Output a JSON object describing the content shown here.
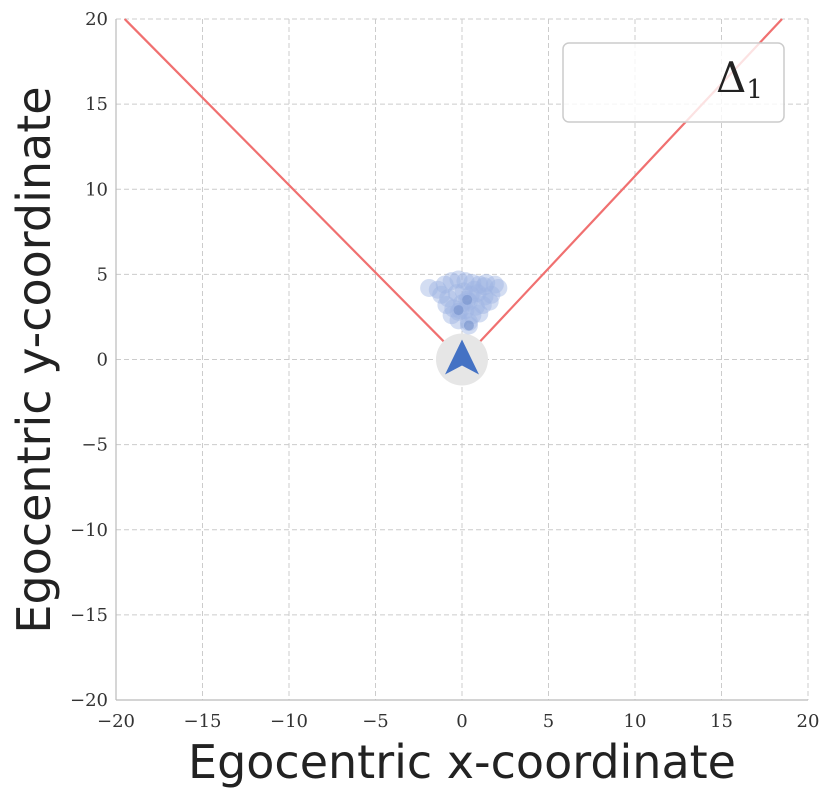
{
  "chart_data": {
    "type": "scatter",
    "xlabel": "Egocentric x-coordinate",
    "ylabel": "Egocentric y-coordinate",
    "xlim": [
      -20,
      20
    ],
    "ylim": [
      -20,
      20
    ],
    "xticks": [
      -20,
      -15,
      -10,
      -5,
      0,
      5,
      10,
      15,
      20
    ],
    "yticks": [
      -20,
      -15,
      -10,
      -5,
      0,
      5,
      10,
      15,
      20
    ],
    "grid": true,
    "legend": {
      "placement": "top-right",
      "label_main": "Δ",
      "label_sub": "1"
    },
    "agent": {
      "x": 0,
      "y": 0,
      "heading": "up",
      "color": "#4472c4",
      "halo_color": "#e6e6e6"
    },
    "boundary_lines": {
      "color": "#f07070",
      "lines": [
        {
          "x1": -19.5,
          "y1": 20,
          "x2": -0.9,
          "y2": 0.9
        },
        {
          "x1": 0.9,
          "y1": 0.9,
          "x2": 18.5,
          "y2": 20
        }
      ]
    },
    "points_color": "#9db3e3",
    "points": [
      {
        "x": -1.9,
        "y": 4.2
      },
      {
        "x": -1.4,
        "y": 4.1
      },
      {
        "x": -1.0,
        "y": 4.4
      },
      {
        "x": -0.6,
        "y": 4.6
      },
      {
        "x": -0.2,
        "y": 4.7
      },
      {
        "x": 0.2,
        "y": 4.6
      },
      {
        "x": 0.6,
        "y": 4.5
      },
      {
        "x": 1.0,
        "y": 4.4
      },
      {
        "x": 1.4,
        "y": 4.5
      },
      {
        "x": 1.9,
        "y": 4.4
      },
      {
        "x": 2.1,
        "y": 4.2
      },
      {
        "x": -1.2,
        "y": 3.8
      },
      {
        "x": -0.8,
        "y": 3.6
      },
      {
        "x": -0.3,
        "y": 3.9
      },
      {
        "x": 0.1,
        "y": 4.0
      },
      {
        "x": 0.5,
        "y": 3.8
      },
      {
        "x": 0.9,
        "y": 3.9
      },
      {
        "x": 1.3,
        "y": 3.7
      },
      {
        "x": 1.7,
        "y": 3.8
      },
      {
        "x": -0.9,
        "y": 3.2
      },
      {
        "x": -0.5,
        "y": 3.0
      },
      {
        "x": 0.0,
        "y": 3.3
      },
      {
        "x": 0.4,
        "y": 3.4
      },
      {
        "x": 0.8,
        "y": 3.1
      },
      {
        "x": 1.2,
        "y": 3.2
      },
      {
        "x": 1.6,
        "y": 3.4
      },
      {
        "x": -0.6,
        "y": 2.6
      },
      {
        "x": -0.2,
        "y": 2.8
      },
      {
        "x": 0.2,
        "y": 2.9
      },
      {
        "x": 0.6,
        "y": 2.6
      },
      {
        "x": 1.0,
        "y": 2.7
      },
      {
        "x": -0.2,
        "y": 2.3
      },
      {
        "x": 0.4,
        "y": 2.2
      },
      {
        "x": 0.4,
        "y": 2.0
      },
      {
        "x": 1.3,
        "y": 4.3
      },
      {
        "x": -0.1,
        "y": 2.9
      },
      {
        "x": 0.3,
        "y": 3.5
      },
      {
        "x": 0.7,
        "y": 4.1
      }
    ]
  }
}
